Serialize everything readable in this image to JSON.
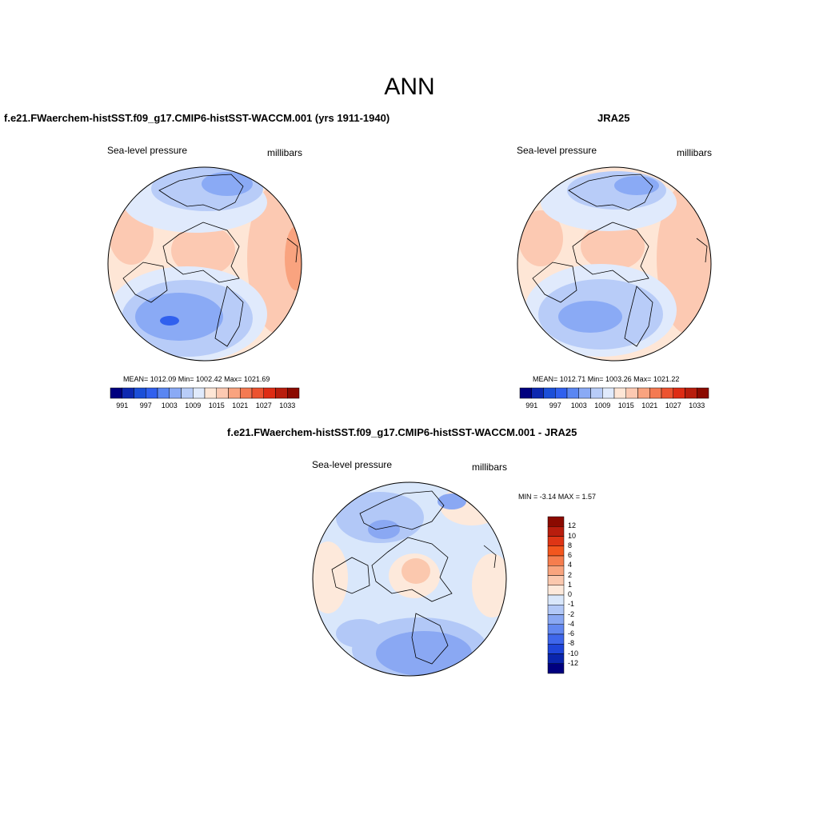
{
  "figure": {
    "title": "ANN"
  },
  "panel1": {
    "title": "f.e21.FWaerchem-histSST.f09_g17.CMIP6-histSST-WACCM.001 (yrs 1911-1940)",
    "left_label": "Sea-level pressure",
    "right_label": "millibars",
    "stats": "MEAN= 1012.09  Min= 1002.42  Max= 1021.69"
  },
  "panel2": {
    "title": "JRA25",
    "left_label": "Sea-level pressure",
    "right_label": "millibars",
    "stats": "MEAN= 1012.71  Min= 1003.26  Max= 1021.22"
  },
  "panel3": {
    "title": "f.e21.FWaerchem-histSST.f09_g17.CMIP6-histSST-WACCM.001 - JRA25",
    "left_label": "Sea-level pressure",
    "right_label": "millibars",
    "stats": "MIN =  -3.14 MAX =   1.57"
  },
  "abs_colorbar": {
    "colors": [
      "#00007f",
      "#0d28b0",
      "#1b4fd8",
      "#3060ee",
      "#5a86f2",
      "#8aaaf5",
      "#b8ccf8",
      "#e0eafc",
      "#fee6d6",
      "#fcc9b2",
      "#f9a37f",
      "#f47a52",
      "#ec5330",
      "#de2c14",
      "#b81d0d",
      "#8b0a00"
    ],
    "tick_labels": [
      "991",
      "997",
      "1003",
      "1009",
      "1015",
      "1021",
      "1027",
      "1033"
    ]
  },
  "diff_colorbar": {
    "colors": [
      "#8b0a00",
      "#b81d0d",
      "#de3515",
      "#f3561e",
      "#f67d4e",
      "#f9a47e",
      "#fbc8ae",
      "#fde9db",
      "#d9e7fb",
      "#b2c8f7",
      "#8aa8f3",
      "#6388f0",
      "#3f67eb",
      "#1f45d9",
      "#0a25ad",
      "#00007f"
    ],
    "tick_labels": [
      "12",
      "10",
      "8",
      "6",
      "4",
      "2",
      "1",
      "0",
      "-1",
      "-2",
      "-4",
      "-6",
      "-8",
      "-10",
      "-12"
    ]
  }
}
